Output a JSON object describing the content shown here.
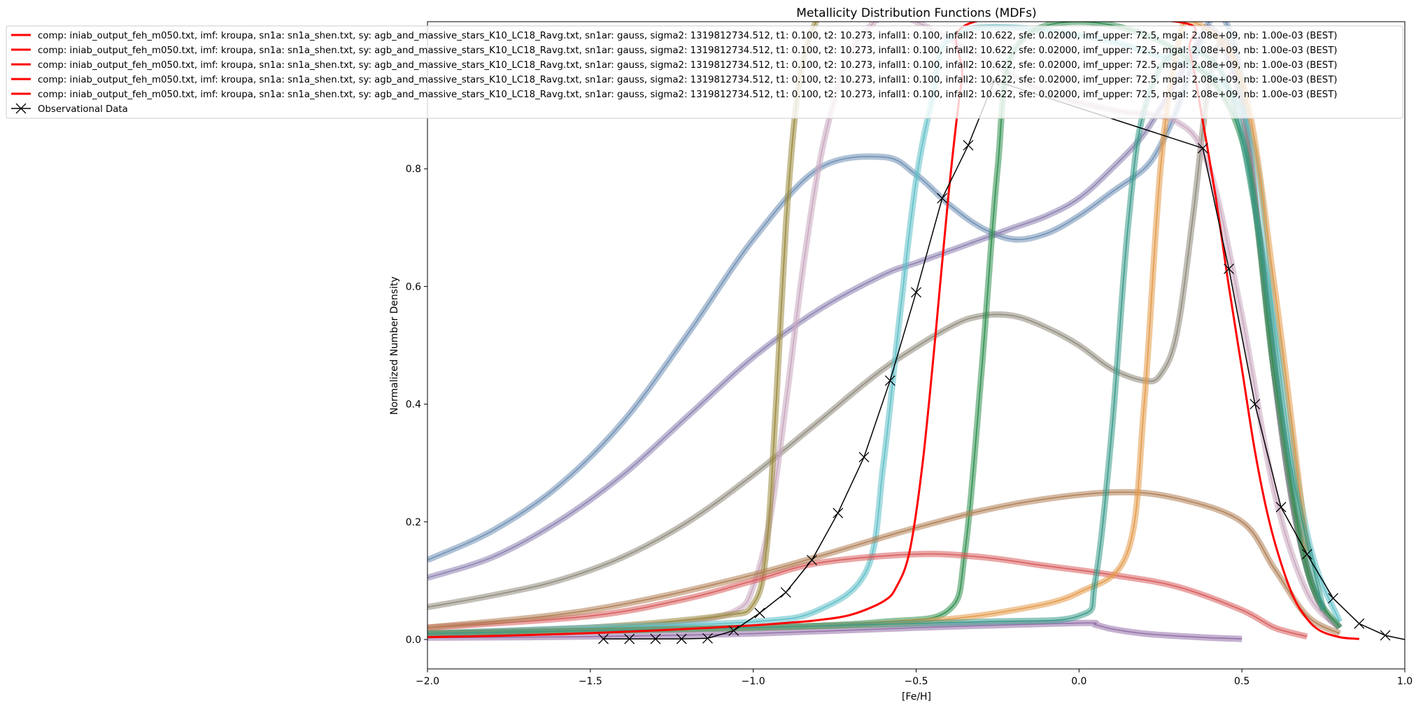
{
  "chart_data": {
    "type": "line",
    "title": "Metallicity Distribution Functions (MDFs)",
    "xlabel": "[Fe/H]",
    "ylabel": "Normalized Number Density",
    "xlim": [
      -2.0,
      1.0
    ],
    "ylim": [
      -0.05,
      1.05
    ],
    "xticks": [
      -2.0,
      -1.5,
      -1.0,
      -0.5,
      0.0,
      0.5,
      1.0
    ],
    "xtick_labels": [
      "−2.0",
      "−1.5",
      "−1.0",
      "−0.5",
      "0.0",
      "0.5",
      "1.0"
    ],
    "yticks": [
      0.0,
      0.2,
      0.4,
      0.6,
      0.8
    ],
    "ytick_labels": [
      "0.0",
      "0.2",
      "0.4",
      "0.6",
      "0.8"
    ],
    "grid": false,
    "legend_position": "upper-left, extending outside the axes",
    "legend": [
      {
        "label": "comp: iniab_output_feh_m050.txt, imf: kroupa, sn1a: sn1a_shen.txt, sy: agb_and_massive_stars_K10_LC18_Ravg.txt, sn1ar: gauss, sigma2: 1319812734.512, t1: 0.100, t2: 10.273, infall1: 0.100, infall2: 10.622, sfe: 0.02000, imf_upper: 72.5, mgal: 2.08e+09, nb: 1.00e-03 (BEST)",
        "color": "#ff0000",
        "marker": "none"
      },
      {
        "label": "comp: iniab_output_feh_m050.txt, imf: kroupa, sn1a: sn1a_shen.txt, sy: agb_and_massive_stars_K10_LC18_Ravg.txt, sn1ar: gauss, sigma2: 1319812734.512, t1: 0.100, t2: 10.273, infall1: 0.100, infall2: 10.622, sfe: 0.02000, imf_upper: 72.5, mgal: 2.08e+09, nb: 1.00e-03 (BEST)",
        "color": "#ff0000",
        "marker": "none"
      },
      {
        "label": "comp: iniab_output_feh_m050.txt, imf: kroupa, sn1a: sn1a_shen.txt, sy: agb_and_massive_stars_K10_LC18_Ravg.txt, sn1ar: gauss, sigma2: 1319812734.512, t1: 0.100, t2: 10.273, infall1: 0.100, infall2: 10.622, sfe: 0.02000, imf_upper: 72.5, mgal: 2.08e+09, nb: 1.00e-03 (BEST)",
        "color": "#ff0000",
        "marker": "none"
      },
      {
        "label": "comp: iniab_output_feh_m050.txt, imf: kroupa, sn1a: sn1a_shen.txt, sy: agb_and_massive_stars_K10_LC18_Ravg.txt, sn1ar: gauss, sigma2: 1319812734.512, t1: 0.100, t2: 10.273, infall1: 0.100, infall2: 10.622, sfe: 0.02000, imf_upper: 72.5, mgal: 2.08e+09, nb: 1.00e-03 (BEST)",
        "color": "#ff0000",
        "marker": "none"
      },
      {
        "label": "comp: iniab_output_feh_m050.txt, imf: kroupa, sn1a: sn1a_shen.txt, sy: agb_and_massive_stars_K10_LC18_Ravg.txt, sn1ar: gauss, sigma2: 1319812734.512, t1: 0.100, t2: 10.273, infall1: 0.100, infall2: 10.622, sfe: 0.02000, imf_upper: 72.5, mgal: 2.08e+09, nb: 1.00e-03 (BEST)",
        "color": "#ff0000",
        "marker": "none"
      },
      {
        "label": "Observational Data",
        "color": "#000000",
        "marker": "x"
      }
    ],
    "observational_data": {
      "x": [
        -1.46,
        -1.38,
        -1.3,
        -1.22,
        -1.14,
        -1.06,
        -0.98,
        -0.9,
        -0.82,
        -0.74,
        -0.66,
        -0.58,
        -0.5,
        -0.42,
        -0.34,
        -0.26,
        0.38,
        0.46,
        0.54,
        0.62,
        0.7,
        0.78,
        0.86,
        0.94,
        1.0
      ],
      "y": [
        0.001,
        0.001,
        0.001,
        0.001,
        0.002,
        0.015,
        0.045,
        0.08,
        0.135,
        0.215,
        0.31,
        0.44,
        0.59,
        0.75,
        0.84,
        0.95,
        0.835,
        0.63,
        0.4,
        0.225,
        0.145,
        0.07,
        0.027,
        0.007,
        0.0
      ]
    },
    "best_model": {
      "x": [
        -2.0,
        -1.8,
        -1.6,
        -1.4,
        -1.2,
        -1.0,
        -0.9,
        -0.8,
        -0.7,
        -0.6,
        -0.56,
        -0.52,
        -0.48,
        -0.44,
        -0.4,
        -0.36,
        -0.32,
        0.3,
        0.34,
        0.38,
        0.42,
        0.46,
        0.5,
        0.54,
        0.58,
        0.62,
        0.66,
        0.7,
        0.74,
        0.8,
        0.86
      ],
      "y": [
        0.004,
        0.006,
        0.009,
        0.013,
        0.018,
        0.024,
        0.028,
        0.033,
        0.042,
        0.065,
        0.09,
        0.15,
        0.3,
        0.52,
        0.76,
        0.95,
        1.05,
        1.05,
        1.0,
        0.88,
        0.75,
        0.6,
        0.46,
        0.32,
        0.21,
        0.13,
        0.07,
        0.035,
        0.015,
        0.004,
        0.001
      ]
    },
    "model_families": [
      {
        "name": "",
        "color": "#6f8fb4",
        "x": [
          -2.0,
          -1.8,
          -1.6,
          -1.4,
          -1.2,
          -1.0,
          -0.8,
          -0.6,
          -0.5,
          -0.4,
          -0.3,
          -0.2,
          -0.1,
          0.0,
          0.1,
          0.2,
          0.25,
          0.3,
          0.35,
          0.4,
          0.45,
          0.5,
          0.55,
          0.6,
          0.65,
          0.7,
          0.75,
          0.8
        ],
        "y": [
          0.135,
          0.185,
          0.26,
          0.37,
          0.52,
          0.68,
          0.8,
          0.82,
          0.79,
          0.74,
          0.7,
          0.68,
          0.69,
          0.72,
          0.76,
          0.8,
          0.84,
          0.9,
          0.98,
          1.05,
          1.05,
          0.95,
          0.7,
          0.45,
          0.25,
          0.12,
          0.05,
          0.02
        ]
      },
      {
        "name": "",
        "color": "#8c7fb0",
        "x": [
          -2.0,
          -1.8,
          -1.6,
          -1.4,
          -1.2,
          -1.0,
          -0.8,
          -0.6,
          -0.5,
          -0.4,
          -0.3,
          -0.2,
          -0.1,
          0.0,
          0.1,
          0.2,
          0.3,
          0.35,
          0.4,
          0.45,
          0.5,
          0.55,
          0.6,
          0.65,
          0.7,
          0.75,
          0.8
        ],
        "y": [
          0.105,
          0.14,
          0.2,
          0.28,
          0.38,
          0.48,
          0.56,
          0.62,
          0.64,
          0.66,
          0.68,
          0.7,
          0.72,
          0.75,
          0.8,
          0.86,
          0.95,
          1.0,
          1.04,
          1.0,
          0.9,
          0.7,
          0.45,
          0.25,
          0.12,
          0.05,
          0.02
        ]
      },
      {
        "name": "",
        "color": "#8f8a7c",
        "x": [
          -2.0,
          -1.8,
          -1.6,
          -1.4,
          -1.2,
          -1.0,
          -0.8,
          -0.6,
          -0.4,
          -0.3,
          -0.2,
          -0.1,
          0.0,
          0.1,
          0.2,
          0.25,
          0.3,
          0.35,
          0.4,
          0.45,
          0.5,
          0.55,
          0.6,
          0.65,
          0.7,
          0.75,
          0.8
        ],
        "y": [
          0.055,
          0.075,
          0.1,
          0.14,
          0.2,
          0.28,
          0.37,
          0.46,
          0.53,
          0.55,
          0.55,
          0.53,
          0.5,
          0.46,
          0.44,
          0.45,
          0.52,
          0.72,
          0.95,
          1.02,
          0.92,
          0.7,
          0.45,
          0.25,
          0.12,
          0.05,
          0.02
        ]
      },
      {
        "name": "",
        "color": "#c9a8c0",
        "x": [
          -2.0,
          -1.5,
          -1.2,
          -1.05,
          -1.0,
          -0.95,
          -0.9,
          -0.85,
          -0.8,
          -0.75,
          -0.7,
          -0.6,
          -0.5,
          -0.3,
          -0.1,
          0.1,
          0.3,
          0.4,
          0.5,
          0.6,
          0.7,
          0.8
        ],
        "y": [
          0.01,
          0.02,
          0.03,
          0.05,
          0.09,
          0.2,
          0.4,
          0.62,
          0.8,
          0.92,
          1.0,
          1.06,
          1.05,
          0.99,
          0.93,
          0.9,
          0.88,
          0.8,
          0.55,
          0.25,
          0.08,
          0.02
        ]
      },
      {
        "name": "",
        "color": "#9a8a3e",
        "x": [
          -2.0,
          -1.5,
          -1.1,
          -1.0,
          -0.96,
          -0.93,
          -0.9,
          -0.87,
          -0.84,
          -0.8
        ],
        "y": [
          0.01,
          0.02,
          0.04,
          0.06,
          0.15,
          0.4,
          0.7,
          0.9,
          1.0,
          1.06
        ]
      },
      {
        "name": "",
        "color": "#5fc0c8",
        "x": [
          -2.0,
          -1.5,
          -1.0,
          -0.8,
          -0.65,
          -0.6,
          -0.55,
          -0.5,
          -0.45,
          -0.4,
          -0.2,
          0.2,
          0.5,
          0.6,
          0.7,
          0.8
        ],
        "y": [
          0.01,
          0.02,
          0.03,
          0.05,
          0.12,
          0.3,
          0.55,
          0.78,
          0.92,
          1.02,
          1.04,
          1.0,
          0.9,
          0.55,
          0.18,
          0.03
        ]
      },
      {
        "name": "",
        "color": "#2f8f4f",
        "x": [
          -2.0,
          -1.0,
          -0.6,
          -0.4,
          -0.35,
          -0.3,
          -0.25,
          -0.2,
          0.0,
          0.3,
          0.5,
          0.6,
          0.7,
          0.8
        ],
        "y": [
          0.01,
          0.02,
          0.03,
          0.05,
          0.15,
          0.45,
          0.8,
          1.0,
          1.05,
          1.0,
          0.85,
          0.45,
          0.12,
          0.02
        ]
      },
      {
        "name": "",
        "color": "#d85c5c",
        "x": [
          -2.0,
          -1.5,
          -1.2,
          -1.0,
          -0.8,
          -0.5,
          -0.3,
          -0.1,
          0.1,
          0.3,
          0.5,
          0.6,
          0.7
        ],
        "y": [
          0.02,
          0.04,
          0.07,
          0.1,
          0.13,
          0.145,
          0.14,
          0.125,
          0.11,
          0.09,
          0.05,
          0.02,
          0.005
        ]
      },
      {
        "name": "",
        "color": "#b07f55",
        "x": [
          -2.0,
          -1.5,
          -1.0,
          -0.5,
          -0.2,
          0.1,
          0.3,
          0.5,
          0.6,
          0.7,
          0.8
        ],
        "y": [
          0.02,
          0.05,
          0.11,
          0.19,
          0.23,
          0.25,
          0.24,
          0.2,
          0.12,
          0.04,
          0.01
        ]
      },
      {
        "name": "",
        "color": "#9370a8",
        "x": [
          -2.0,
          -1.5,
          -1.0,
          -0.5,
          0.0,
          0.05,
          0.1,
          0.2,
          0.3,
          0.4,
          0.5
        ],
        "y": [
          0.003,
          0.005,
          0.01,
          0.02,
          0.028,
          0.025,
          0.018,
          0.01,
          0.006,
          0.003,
          0.001
        ]
      },
      {
        "name": "",
        "color": "#e39a4a",
        "x": [
          -2.0,
          -1.0,
          -0.5,
          -0.2,
          0.0,
          0.15,
          0.2,
          0.25,
          0.3,
          0.35,
          0.5,
          0.6,
          0.7
        ],
        "y": [
          0.01,
          0.02,
          0.03,
          0.05,
          0.08,
          0.15,
          0.4,
          0.8,
          1.0,
          1.05,
          0.95,
          0.6,
          0.15
        ]
      },
      {
        "name": "",
        "color": "#3a9a8a",
        "x": [
          -2.0,
          -1.0,
          -0.3,
          0.0,
          0.05,
          0.1,
          0.15,
          0.2,
          0.3,
          0.45,
          0.55,
          0.65,
          0.75
        ],
        "y": [
          0.01,
          0.02,
          0.03,
          0.04,
          0.1,
          0.35,
          0.7,
          0.9,
          1.0,
          0.95,
          0.7,
          0.3,
          0.05
        ]
      }
    ]
  }
}
